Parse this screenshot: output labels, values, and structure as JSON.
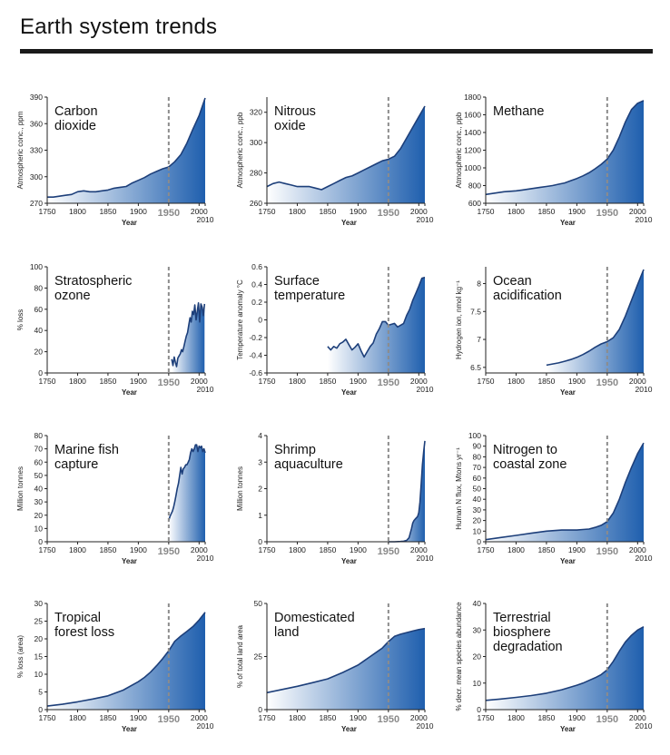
{
  "title": "Earth system trends",
  "colors": {
    "curve": "#1d3f7a",
    "fill_dark": "#1f5fae",
    "fill_light": "#ffffff",
    "marker": "#8c8c8c",
    "rule": "#1a1a1a"
  },
  "chart_data": [
    {
      "type": "area",
      "title_lines": [
        "Carbon",
        "dioxide"
      ],
      "ylabel": "Atmospheric conc., ppm",
      "xlabel": "Year",
      "xlim": [
        1750,
        2010
      ],
      "ylim": [
        270,
        390
      ],
      "yticks": [
        270,
        300,
        330,
        360,
        390
      ],
      "x": [
        1750,
        1760,
        1770,
        1780,
        1790,
        1800,
        1810,
        1820,
        1830,
        1840,
        1850,
        1860,
        1870,
        1880,
        1890,
        1900,
        1910,
        1920,
        1930,
        1940,
        1950,
        1960,
        1970,
        1980,
        1990,
        2000,
        2010
      ],
      "y": [
        277,
        277,
        278,
        279,
        280,
        283,
        284,
        283,
        283,
        284,
        285,
        287,
        288,
        289,
        293,
        296,
        299,
        303,
        306,
        309,
        311,
        317,
        325,
        338,
        354,
        369,
        389
      ]
    },
    {
      "type": "area",
      "title_lines": [
        "Nitrous",
        "oxide"
      ],
      "ylabel": "Atmospheric conc., ppb",
      "xlabel": "Year",
      "xlim": [
        1750,
        2010
      ],
      "ylim": [
        260,
        330
      ],
      "yticks": [
        260,
        280,
        300,
        320
      ],
      "x": [
        1750,
        1760,
        1770,
        1780,
        1790,
        1800,
        1810,
        1820,
        1830,
        1840,
        1850,
        1860,
        1870,
        1880,
        1890,
        1900,
        1910,
        1920,
        1930,
        1940,
        1950,
        1960,
        1970,
        1980,
        1990,
        2000,
        2010
      ],
      "y": [
        271,
        273,
        274,
        273,
        272,
        271,
        271,
        271,
        270,
        269,
        271,
        273,
        275,
        277,
        278,
        280,
        282,
        284,
        286,
        288,
        289,
        291,
        296,
        303,
        310,
        317,
        324
      ]
    },
    {
      "type": "area",
      "title_lines": [
        "Methane"
      ],
      "ylabel": "Atmospheric conc., ppb",
      "xlabel": "Year",
      "xlim": [
        1750,
        2010
      ],
      "ylim": [
        600,
        1800
      ],
      "yticks": [
        600,
        800,
        1000,
        1200,
        1400,
        1600,
        1800
      ],
      "x": [
        1750,
        1760,
        1770,
        1780,
        1790,
        1800,
        1810,
        1820,
        1830,
        1840,
        1850,
        1860,
        1870,
        1880,
        1890,
        1900,
        1910,
        1920,
        1930,
        1940,
        1950,
        1960,
        1970,
        1980,
        1990,
        2000,
        2010
      ],
      "y": [
        700,
        710,
        720,
        730,
        735,
        740,
        750,
        760,
        770,
        780,
        790,
        800,
        815,
        830,
        855,
        880,
        910,
        945,
        990,
        1040,
        1100,
        1200,
        1350,
        1520,
        1660,
        1730,
        1760
      ]
    },
    {
      "type": "area",
      "title_lines": [
        "Stratospheric",
        "ozone"
      ],
      "ylabel": "% loss",
      "xlabel": "Year",
      "xlim": [
        1750,
        2010
      ],
      "ylim": [
        0,
        100
      ],
      "yticks": [
        0,
        20,
        40,
        60,
        80,
        100
      ],
      "x": [
        1955,
        1957,
        1959,
        1961,
        1963,
        1965,
        1967,
        1969,
        1971,
        1973,
        1975,
        1977,
        1979,
        1981,
        1983,
        1985,
        1987,
        1989,
        1991,
        1993,
        1995,
        1997,
        1999,
        2001,
        2003,
        2005,
        2007,
        2009
      ],
      "y": [
        13,
        7,
        15,
        10,
        6,
        14,
        16,
        18,
        22,
        20,
        25,
        30,
        35,
        38,
        45,
        52,
        48,
        58,
        55,
        64,
        50,
        58,
        66,
        48,
        65,
        62,
        54,
        65
      ]
    },
    {
      "type": "area",
      "title_lines": [
        "Surface",
        "temperature"
      ],
      "ylabel": "Temperature anomaly °C",
      "xlabel": "Year",
      "xlim": [
        1750,
        2010
      ],
      "ylim": [
        -0.6,
        0.6
      ],
      "yticks": [
        -0.6,
        -0.4,
        -0.2,
        0,
        0.2,
        0.4,
        0.6
      ],
      "fill_base": -0.6,
      "x": [
        1850,
        1855,
        1860,
        1865,
        1870,
        1875,
        1880,
        1885,
        1890,
        1895,
        1900,
        1905,
        1910,
        1915,
        1920,
        1925,
        1930,
        1935,
        1940,
        1945,
        1950,
        1955,
        1960,
        1965,
        1970,
        1975,
        1980,
        1985,
        1990,
        1995,
        2000,
        2005,
        2010
      ],
      "y": [
        -0.3,
        -0.34,
        -0.3,
        -0.32,
        -0.27,
        -0.25,
        -0.22,
        -0.28,
        -0.34,
        -0.31,
        -0.27,
        -0.35,
        -0.42,
        -0.36,
        -0.3,
        -0.26,
        -0.16,
        -0.1,
        -0.02,
        -0.02,
        -0.06,
        -0.05,
        -0.04,
        -0.08,
        -0.06,
        -0.04,
        0.05,
        0.12,
        0.22,
        0.3,
        0.38,
        0.47,
        0.48
      ]
    },
    {
      "type": "area",
      "title_lines": [
        "Ocean",
        "acidification"
      ],
      "ylabel": "Hydrogen ion, nmol kg⁻¹",
      "xlabel": "Year",
      "xlim": [
        1750,
        2010
      ],
      "ylim": [
        6.4,
        8.3
      ],
      "yticks": [
        6.5,
        7.0,
        7.5,
        8.0
      ],
      "fill_base": 6.4,
      "x": [
        1850,
        1860,
        1870,
        1880,
        1890,
        1900,
        1910,
        1920,
        1930,
        1940,
        1950,
        1960,
        1970,
        1980,
        1990,
        2000,
        2010
      ],
      "y": [
        6.54,
        6.56,
        6.58,
        6.61,
        6.64,
        6.68,
        6.73,
        6.79,
        6.86,
        6.92,
        6.96,
        7.03,
        7.18,
        7.42,
        7.7,
        7.98,
        8.25
      ]
    },
    {
      "type": "area",
      "title_lines": [
        "Marine fish",
        "capture"
      ],
      "ylabel": "Million tonnes",
      "xlabel": "Year",
      "xlim": [
        1750,
        2010
      ],
      "ylim": [
        0,
        80
      ],
      "yticks": [
        0,
        10,
        20,
        30,
        40,
        50,
        60,
        70,
        80
      ],
      "x": [
        1950,
        1952,
        1954,
        1956,
        1958,
        1960,
        1962,
        1964,
        1966,
        1968,
        1970,
        1972,
        1974,
        1976,
        1978,
        1980,
        1982,
        1984,
        1986,
        1988,
        1990,
        1992,
        1994,
        1996,
        1998,
        2000,
        2002,
        2004,
        2006,
        2008,
        2010
      ],
      "y": [
        16,
        19,
        21,
        23,
        26,
        30,
        35,
        40,
        44,
        50,
        56,
        51,
        55,
        56,
        58,
        58,
        60,
        62,
        67,
        70,
        68,
        70,
        73,
        73,
        68,
        72,
        71,
        72,
        68,
        70,
        67
      ]
    },
    {
      "type": "area",
      "title_lines": [
        "Shrimp",
        "aquaculture"
      ],
      "ylabel": "Million tonnes",
      "xlabel": "Year",
      "xlim": [
        1750,
        2010
      ],
      "ylim": [
        0,
        4
      ],
      "yticks": [
        0,
        1,
        2,
        3,
        4
      ],
      "x": [
        1950,
        1960,
        1970,
        1975,
        1980,
        1984,
        1988,
        1990,
        1992,
        1994,
        1996,
        1998,
        2000,
        2002,
        2004,
        2006,
        2008,
        2010
      ],
      "y": [
        0,
        0,
        0.01,
        0.02,
        0.05,
        0.15,
        0.5,
        0.7,
        0.8,
        0.85,
        0.9,
        0.95,
        1.1,
        1.5,
        2.2,
        2.9,
        3.4,
        3.8
      ]
    },
    {
      "type": "area",
      "title_lines": [
        "Nitrogen to",
        "coastal zone"
      ],
      "ylabel": "Human N flux, Mtons yr⁻¹",
      "xlabel": "Year",
      "xlim": [
        1750,
        2010
      ],
      "ylim": [
        0,
        100
      ],
      "yticks": [
        0,
        10,
        20,
        30,
        40,
        50,
        60,
        70,
        80,
        90,
        100
      ],
      "x": [
        1750,
        1775,
        1800,
        1825,
        1850,
        1875,
        1900,
        1910,
        1920,
        1930,
        1940,
        1950,
        1960,
        1970,
        1980,
        1990,
        2000,
        2010
      ],
      "y": [
        2,
        4,
        6,
        8,
        10,
        11,
        11,
        11.5,
        12,
        13.5,
        15.5,
        19,
        27,
        40,
        56,
        70,
        83,
        93
      ]
    },
    {
      "type": "area",
      "title_lines": [
        "Tropical",
        "forest loss"
      ],
      "ylabel": "% loss (area)",
      "xlabel": "Year",
      "xlim": [
        1750,
        2010
      ],
      "ylim": [
        0,
        30
      ],
      "yticks": [
        0,
        5,
        10,
        15,
        20,
        25,
        30
      ],
      "x": [
        1750,
        1775,
        1800,
        1825,
        1850,
        1875,
        1900,
        1910,
        1920,
        1930,
        1940,
        1950,
        1960,
        1970,
        1980,
        1990,
        2000,
        2010
      ],
      "y": [
        1,
        1.5,
        2.2,
        3,
        3.9,
        5.5,
        7.9,
        9.1,
        10.6,
        12.4,
        14.4,
        16.6,
        19.3,
        20.8,
        22.1,
        23.5,
        25.3,
        27.5
      ]
    },
    {
      "type": "area",
      "title_lines": [
        "Domesticated",
        "land"
      ],
      "ylabel": "% of total land area",
      "xlabel": "Year",
      "xlim": [
        1750,
        2010
      ],
      "ylim": [
        0,
        50
      ],
      "yticks": [
        0,
        25,
        50
      ],
      "x": [
        1750,
        1775,
        1800,
        1825,
        1850,
        1875,
        1900,
        1910,
        1920,
        1930,
        1940,
        1950,
        1960,
        1970,
        1980,
        1990,
        2000,
        2010
      ],
      "y": [
        8,
        9.5,
        11,
        12.7,
        14.5,
        17.5,
        21,
        23,
        25,
        27,
        29,
        32,
        34.5,
        35.5,
        36.3,
        37,
        37.7,
        38.2
      ]
    },
    {
      "type": "area",
      "title_lines": [
        "Terrestrial",
        "biosphere",
        "degradation"
      ],
      "ylabel": "% decr. mean species abundance",
      "xlabel": "Year",
      "xlim": [
        1750,
        2010
      ],
      "ylim": [
        0,
        40
      ],
      "yticks": [
        0,
        10,
        20,
        30,
        40
      ],
      "x": [
        1750,
        1775,
        1800,
        1825,
        1850,
        1875,
        1900,
        1910,
        1920,
        1930,
        1940,
        1950,
        1960,
        1970,
        1980,
        1990,
        2000,
        2010
      ],
      "y": [
        3.5,
        4,
        4.6,
        5.3,
        6.2,
        7.5,
        9.2,
        10,
        11,
        12,
        13.2,
        15,
        18.2,
        22,
        25.5,
        28,
        30,
        31.2
      ]
    }
  ],
  "xticks": [
    1750,
    1800,
    1850,
    1900,
    1950,
    2000
  ],
  "x_end_label": "2010",
  "marker_year": "1950"
}
